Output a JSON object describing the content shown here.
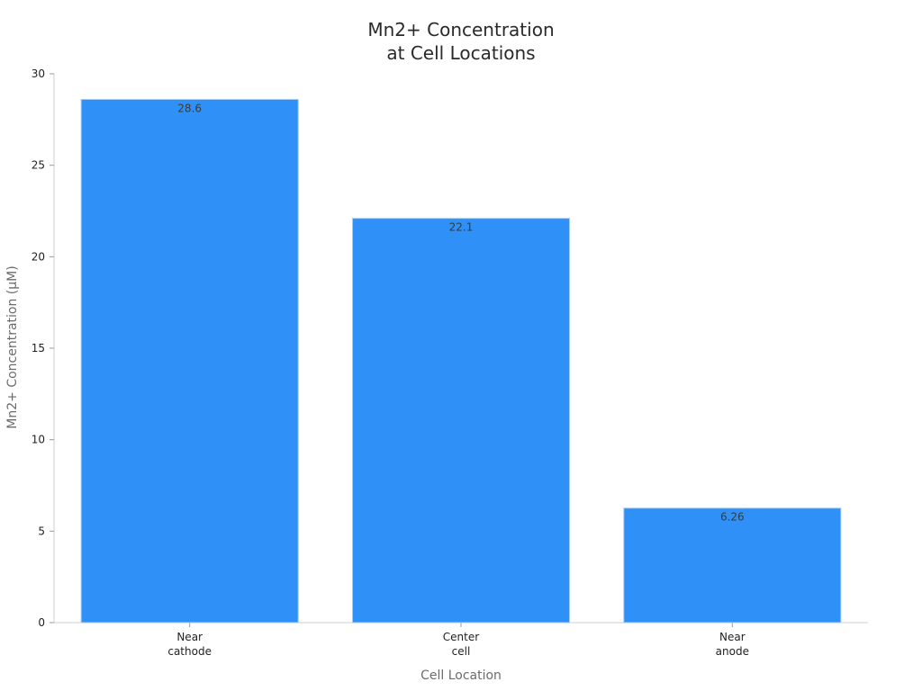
{
  "chart_data": {
    "type": "bar",
    "title": [
      "Mn2+ Concentration",
      "at Cell Locations"
    ],
    "xlabel": "Cell Location",
    "ylabel": "Mn2+ Concentration (µM)",
    "categories": [
      [
        "Near",
        "cathode"
      ],
      [
        "Center",
        "cell"
      ],
      [
        "Near",
        "anode"
      ]
    ],
    "values": [
      28.6,
      22.1,
      6.26
    ],
    "data_labels": [
      "28.6",
      "22.1",
      "6.26"
    ],
    "ylim": [
      0,
      30
    ],
    "yticks": [
      0,
      5,
      10,
      15,
      20,
      25,
      30
    ],
    "grid": false,
    "legend": "none",
    "colors": {
      "bar_fill": "#2f91f7",
      "bar_stroke": "#a8cdf5"
    }
  }
}
